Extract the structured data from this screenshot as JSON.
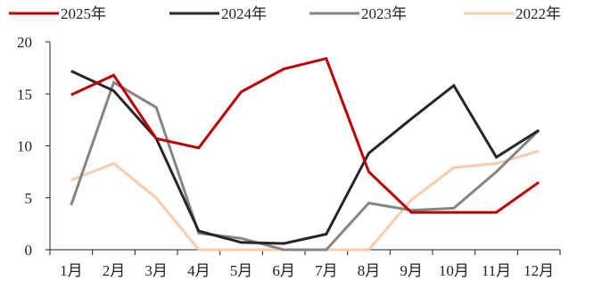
{
  "chart_data": {
    "type": "line",
    "title": "",
    "xlabel": "",
    "ylabel": "",
    "categories": [
      "1月",
      "2月",
      "3月",
      "4月",
      "5月",
      "6月",
      "7月",
      "8月",
      "9月",
      "10月",
      "11月",
      "12月"
    ],
    "ylim": [
      0,
      20
    ],
    "yticks": [
      0,
      5,
      10,
      15,
      20
    ],
    "grid": false,
    "legend_position": "top",
    "series": [
      {
        "name": "2025年",
        "color": "#c00000",
        "values": [
          14.9,
          16.8,
          10.7,
          9.8,
          15.2,
          17.4,
          18.4,
          7.5,
          3.6,
          3.6,
          3.6,
          6.5
        ]
      },
      {
        "name": "2024年",
        "color": "#262626",
        "values": [
          17.2,
          15.3,
          10.7,
          1.8,
          0.7,
          0.6,
          1.5,
          9.3,
          12.6,
          15.8,
          8.9,
          11.5
        ]
      },
      {
        "name": "2023年",
        "color": "#858585",
        "values": [
          4.3,
          16.1,
          13.7,
          1.6,
          1.1,
          0.0,
          0.0,
          4.5,
          3.8,
          4.0,
          7.5,
          11.5
        ]
      },
      {
        "name": "2022年",
        "color": "#f8cbad",
        "values": [
          6.7,
          8.3,
          5.0,
          0.0,
          0.0,
          0.0,
          0.0,
          0.0,
          4.8,
          7.9,
          8.3,
          9.5
        ]
      }
    ]
  }
}
